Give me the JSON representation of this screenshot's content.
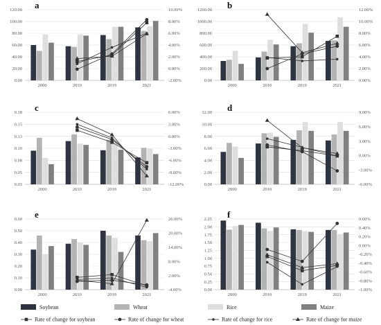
{
  "colors": {
    "Soybean": "#2e3441",
    "Wheat": "#b3b3b3",
    "Rice": "#dedede",
    "Maize": "#808080",
    "line": "#333333"
  },
  "legend": {
    "bars": [
      "Soybean",
      "Wheat",
      "Rice",
      "Maize"
    ],
    "lines": [
      {
        "label": "Rate of change for soybean",
        "marker": "square"
      },
      {
        "label": "Rate of change for wheat",
        "marker": "circle"
      },
      {
        "label": "Rate of change for rice",
        "marker": "dot"
      },
      {
        "label": "Rate of change for maize",
        "marker": "triangle"
      }
    ]
  },
  "chart_data": [
    {
      "type": "bar+line",
      "panel": "a",
      "categories": [
        "2000",
        "2010",
        "2019",
        "2021"
      ],
      "left_ticks": [
        "0.00",
        "20.00",
        "40.00",
        "60.00",
        "80.00",
        "100.00",
        "120.00"
      ],
      "ylim": [
        0,
        120
      ],
      "right_ticks": [
        "-2.00%",
        "0.00%",
        "2.00%",
        "4.00%",
        "6.00%",
        "8.00%",
        "10.00%"
      ],
      "y2lim": [
        -2,
        10
      ],
      "series": [
        {
          "name": "Soybean",
          "values": [
            60,
            58,
            77,
            90
          ]
        },
        {
          "name": "Wheat",
          "values": [
            50,
            57,
            70,
            84
          ]
        },
        {
          "name": "Rice",
          "values": [
            78,
            78,
            91,
            92
          ]
        },
        {
          "name": "Maize",
          "values": [
            64,
            76,
            91,
            101
          ]
        }
      ],
      "rates": [
        {
          "name": "Rate of change for soybean",
          "x": [
            "2010",
            "2019",
            "2021"
          ],
          "values": [
            1.2,
            2.3,
            7.8
          ]
        },
        {
          "name": "Rate of change for wheat",
          "x": [
            "2010",
            "2019",
            "2021"
          ],
          "values": [
            -0.1,
            2.5,
            8.3
          ]
        },
        {
          "name": "Rate of change for rice",
          "x": [
            "2010",
            "2019",
            "2021"
          ],
          "values": [
            0.8,
            3.6,
            6.0
          ]
        },
        {
          "name": "Rate of change for maize",
          "x": [
            "2010",
            "2019",
            "2021"
          ],
          "values": [
            1.7,
            2.1,
            5.9
          ]
        }
      ]
    },
    {
      "type": "bar+line",
      "panel": "b",
      "categories": [
        "2000",
        "2010",
        "2019",
        "2021"
      ],
      "left_ticks": [
        "0.00",
        "200.00",
        "400.00",
        "600.00",
        "800.00",
        "1000.00",
        "1200.00"
      ],
      "ylim": [
        0,
        1200
      ],
      "right_ticks": [
        "0.00%",
        "2.00%",
        "4.00%",
        "6.00%",
        "8.00%",
        "10.00%",
        "12.00%"
      ],
      "y2lim": [
        0,
        12
      ],
      "series": [
        {
          "name": "Soybean",
          "values": [
            330,
            390,
            580,
            670
          ]
        },
        {
          "name": "Wheat",
          "values": [
            350,
            490,
            630,
            680
          ]
        },
        {
          "name": "Rice",
          "values": [
            500,
            690,
            960,
            1070
          ]
        },
        {
          "name": "Maize",
          "values": [
            280,
            610,
            810,
            910
          ]
        }
      ],
      "rates": [
        {
          "name": "Rate of change for soybean",
          "x": [
            "2010",
            "2019",
            "2021"
          ],
          "values": [
            3.8,
            4.0,
            7.5
          ]
        },
        {
          "name": "Rate of change for wheat",
          "x": [
            "2010",
            "2019",
            "2021"
          ],
          "values": [
            2.0,
            4.5,
            5.8
          ]
        },
        {
          "name": "Rate of change for rice",
          "x": [
            "2010",
            "2019",
            "2021"
          ],
          "values": [
            3.9,
            3.3,
            3.6
          ]
        },
        {
          "name": "Rate of change for maize",
          "x": [
            "2010",
            "2019",
            "2021"
          ],
          "values": [
            11.2,
            4.7,
            6.3
          ]
        }
      ]
    },
    {
      "type": "bar+line",
      "panel": "c",
      "categories": [
        "2000",
        "2010",
        "2019",
        "2021"
      ],
      "left_ticks": [
        "0.03",
        "0.05",
        "0.08",
        "0.10",
        "0.13",
        "0.15",
        "0.18"
      ],
      "ylim": [
        0.03,
        0.18
      ],
      "right_ticks": [
        "-12.00%",
        "-9.00%",
        "-6.00%",
        "-3.00%",
        "0.00%",
        "3.00%",
        "6.00%"
      ],
      "y2lim": [
        -12,
        6
      ],
      "series": [
        {
          "name": "Soybean",
          "values": [
            0.1,
            0.12,
            0.101,
            0.086
          ]
        },
        {
          "name": "Wheat",
          "values": [
            0.127,
            0.134,
            0.123,
            0.106
          ]
        },
        {
          "name": "Rice",
          "values": [
            0.085,
            0.115,
            0.12,
            0.104
          ]
        },
        {
          "name": "Maize",
          "values": [
            0.072,
            0.112,
            0.102,
            0.093
          ]
        }
      ],
      "rates": [
        {
          "name": "Rate of change for soybean",
          "x": [
            "2010",
            "2019",
            "2021"
          ],
          "values": [
            1.5,
            -1.5,
            -6.6
          ]
        },
        {
          "name": "Rate of change for wheat",
          "x": [
            "2010",
            "2019",
            "2021"
          ],
          "values": [
            2.3,
            -0.8,
            -7.6
          ]
        },
        {
          "name": "Rate of change for rice",
          "x": [
            "2010",
            "2019",
            "2021"
          ],
          "values": [
            3.0,
            -0.4,
            -8.2
          ]
        },
        {
          "name": "Rate of change for maize",
          "x": [
            "2010",
            "2019",
            "2021"
          ],
          "values": [
            4.4,
            0.4,
            -9.9
          ]
        }
      ]
    },
    {
      "type": "bar+line",
      "panel": "d",
      "categories": [
        "2000",
        "2010",
        "2019",
        "2021"
      ],
      "left_ticks": [
        "0.00",
        "2.00",
        "4.00",
        "6.00",
        "8.00",
        "10.00",
        "12.00"
      ],
      "ylim": [
        0,
        12
      ],
      "right_ticks": [
        "-6.00%",
        "-3.00%",
        "0.00%",
        "3.00%",
        "6.00%",
        "9.00%"
      ],
      "y2lim": [
        -6,
        9
      ],
      "series": [
        {
          "name": "Soybean",
          "values": [
            5.4,
            6.8,
            7.4,
            7.3
          ]
        },
        {
          "name": "Wheat",
          "values": [
            6.9,
            8.5,
            9.0,
            8.3
          ]
        },
        {
          "name": "Rice",
          "values": [
            6.3,
            8.6,
            10.4,
            10.4
          ]
        },
        {
          "name": "Maize",
          "values": [
            4.4,
            7.9,
            8.9,
            8.9
          ]
        }
      ],
      "rates": [
        {
          "name": "Rate of change for soybean",
          "x": [
            "2010",
            "2019",
            "2021"
          ],
          "values": [
            1.8,
            1.0,
            -0.1
          ]
        },
        {
          "name": "Rate of change for wheat",
          "x": [
            "2010",
            "2019",
            "2021"
          ],
          "values": [
            2.2,
            0.8,
            -3.2
          ]
        },
        {
          "name": "Rate of change for rice",
          "x": [
            "2010",
            "2019",
            "2021"
          ],
          "values": [
            3.5,
            1.7,
            -0.1
          ]
        },
        {
          "name": "Rate of change for maize",
          "x": [
            "2010",
            "2019",
            "2021"
          ],
          "values": [
            7.3,
            1.6,
            0.4
          ]
        }
      ]
    },
    {
      "type": "bar+line",
      "panel": "e",
      "categories": [
        "2000",
        "2010",
        "2019",
        "2021"
      ],
      "left_ticks": [
        "0.00",
        "0.10",
        "0.20",
        "0.30",
        "0.40",
        "0.50",
        "0.60"
      ],
      "ylim": [
        0,
        0.6
      ],
      "right_ticks": [
        "-4.00%",
        "2.00%",
        "8.00%",
        "14.00%",
        "20.00%",
        "26.00%"
      ],
      "y2lim": [
        -4,
        26
      ],
      "series": [
        {
          "name": "Soybean",
          "values": [
            0.34,
            0.39,
            0.5,
            0.46
          ]
        },
        {
          "name": "Wheat",
          "values": [
            0.46,
            0.43,
            0.46,
            0.42
          ]
        },
        {
          "name": "Rice",
          "values": [
            0.3,
            0.4,
            0.44,
            0.41
          ]
        },
        {
          "name": "Maize",
          "values": [
            0.37,
            0.38,
            0.32,
            0.48
          ]
        }
      ],
      "rates": [
        {
          "name": "Rate of change for soybean",
          "x": [
            "2010",
            "2019",
            "2021"
          ],
          "values": [
            1.2,
            2.4,
            -2.3
          ]
        },
        {
          "name": "Rate of change for wheat",
          "x": [
            "2010",
            "2019",
            "2021"
          ],
          "values": [
            -0.5,
            0.0,
            -2.0
          ]
        },
        {
          "name": "Rate of change for rice",
          "x": [
            "2010",
            "2019",
            "2021"
          ],
          "values": [
            0.3,
            1.0,
            -3.0
          ]
        },
        {
          "name": "Rate of change for maize",
          "x": [
            "2010",
            "2019",
            "2021"
          ],
          "values": [
            0.0,
            -1.5,
            25.5
          ]
        }
      ]
    },
    {
      "type": "bar+line",
      "panel": "f",
      "categories": [
        "2000",
        "2010",
        "2019",
        "2021"
      ],
      "left_ticks": [
        "0.00",
        "0.25",
        "0.50",
        "0.75",
        "1.00",
        "1.25",
        "1.50",
        "1.75",
        "2.00",
        "2.25"
      ],
      "ylim": [
        0,
        2.25
      ],
      "right_ticks": [
        "-1.00%",
        "-0.80%",
        "-0.60%",
        "-0.40%",
        "-0.20%",
        "0.00%",
        "0.20%",
        "0.40%",
        "0.60%"
      ],
      "y2lim": [
        -1,
        0.6
      ],
      "series": [
        {
          "name": "Soybean",
          "values": [
            2.2,
            2.13,
            1.92,
            1.9
          ]
        },
        {
          "name": "Wheat",
          "values": [
            1.91,
            1.95,
            1.9,
            1.9
          ]
        },
        {
          "name": "Rice",
          "values": [
            2.03,
            1.87,
            1.86,
            1.77
          ]
        },
        {
          "name": "Maize",
          "values": [
            2.06,
            1.98,
            1.84,
            1.82
          ]
        }
      ],
      "rates": [
        {
          "name": "Rate of change for soybean",
          "x": [
            "2010",
            "2019",
            "2021"
          ],
          "values": [
            -0.25,
            -0.57,
            -0.45
          ]
        },
        {
          "name": "Rate of change for wheat",
          "x": [
            "2010",
            "2019",
            "2021"
          ],
          "values": [
            -0.09,
            -0.36,
            0.5
          ]
        },
        {
          "name": "Rate of change for rice",
          "x": [
            "2010",
            "2019",
            "2021"
          ],
          "values": [
            -0.38,
            -0.88,
            -0.48
          ]
        },
        {
          "name": "Rate of change for maize",
          "x": [
            "2010",
            "2019",
            "2021"
          ],
          "values": [
            -0.21,
            -0.5,
            -0.41
          ]
        }
      ]
    }
  ]
}
